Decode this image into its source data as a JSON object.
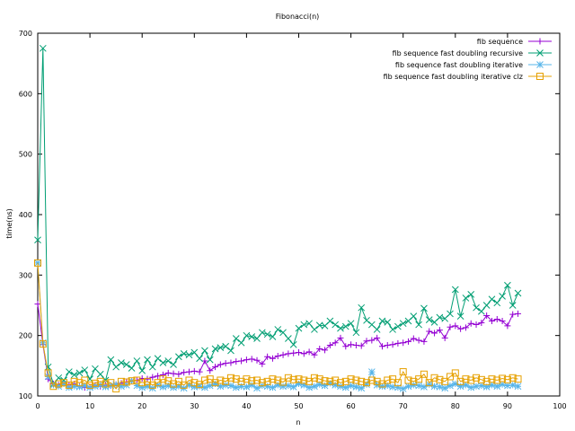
{
  "chart_data": {
    "type": "line",
    "title": "Fibonacci(n)",
    "xlabel": "n",
    "ylabel": "time(ns)",
    "xlim": [
      0,
      100
    ],
    "ylim": [
      100,
      700
    ],
    "xticks": [
      "0",
      "10",
      "20",
      "30",
      "40",
      "50",
      "60",
      "70",
      "80",
      "90",
      "100"
    ],
    "yticks": [
      "100",
      "200",
      "300",
      "400",
      "500",
      "600",
      "700"
    ],
    "legend_position": "top-right",
    "grid": false,
    "x": [
      0,
      1,
      2,
      3,
      4,
      5,
      6,
      7,
      8,
      9,
      10,
      11,
      12,
      13,
      14,
      15,
      16,
      17,
      18,
      19,
      20,
      21,
      22,
      23,
      24,
      25,
      26,
      27,
      28,
      29,
      30,
      31,
      32,
      33,
      34,
      35,
      36,
      37,
      38,
      39,
      40,
      41,
      42,
      43,
      44,
      45,
      46,
      47,
      48,
      49,
      50,
      51,
      52,
      53,
      54,
      55,
      56,
      57,
      58,
      59,
      60,
      61,
      62,
      63,
      64,
      65,
      66,
      67,
      68,
      69,
      70,
      71,
      72,
      73,
      74,
      75,
      76,
      77,
      78,
      79,
      80,
      81,
      82,
      83,
      84,
      85,
      86,
      87,
      88,
      89,
      90,
      91,
      92
    ],
    "series": [
      {
        "name": "fib sequence",
        "color": "#9400d3",
        "marker": "plus",
        "values": [
          252,
          185,
          128,
          120,
          118,
          122,
          118,
          120,
          116,
          114,
          115,
          118,
          116,
          118,
          117,
          119,
          121,
          123,
          125,
          126,
          129,
          128,
          131,
          133,
          135,
          138,
          137,
          136,
          139,
          140,
          141,
          140,
          158,
          142,
          148,
          152,
          154,
          155,
          157,
          158,
          160,
          161,
          159,
          153,
          165,
          162,
          166,
          168,
          170,
          171,
          172,
          170,
          173,
          168,
          178,
          176,
          184,
          188,
          196,
          182,
          185,
          184,
          183,
          191,
          192,
          196,
          182,
          184,
          185,
          187,
          188,
          190,
          195,
          192,
          190,
          207,
          204,
          209,
          196,
          214,
          216,
          211,
          213,
          220,
          218,
          221,
          233,
          224,
          227,
          224,
          216,
          235,
          236
        ]
      },
      {
        "name": "fib sequence fast doubling recursive",
        "color": "#009e73",
        "marker": "cross",
        "values": [
          358,
          675,
          148,
          120,
          130,
          126,
          140,
          135,
          138,
          143,
          128,
          145,
          136,
          126,
          160,
          148,
          155,
          152,
          146,
          158,
          142,
          160,
          148,
          162,
          155,
          158,
          152,
          165,
          170,
          168,
          172,
          162,
          175,
          160,
          178,
          180,
          182,
          175,
          195,
          188,
          200,
          198,
          195,
          205,
          202,
          198,
          210,
          205,
          195,
          185,
          212,
          218,
          220,
          210,
          217,
          216,
          224,
          218,
          212,
          215,
          220,
          205,
          246,
          225,
          218,
          210,
          224,
          222,
          210,
          215,
          220,
          224,
          232,
          218,
          245,
          226,
          222,
          230,
          228,
          236,
          276,
          232,
          262,
          268,
          246,
          240,
          250,
          260,
          254,
          265,
          283,
          250,
          270
        ]
      },
      {
        "name": "fib sequence fast doubling iterative",
        "color": "#56b4e9",
        "marker": "star",
        "values": [
          320,
          188,
          132,
          118,
          116,
          120,
          114,
          116,
          115,
          117,
          114,
          116,
          118,
          115,
          117,
          119,
          116,
          118,
          125,
          117,
          114,
          116,
          113,
          118,
          115,
          117,
          114,
          116,
          113,
          118,
          115,
          116,
          114,
          117,
          120,
          116,
          118,
          117,
          114,
          116,
          115,
          118,
          113,
          117,
          116,
          114,
          118,
          116,
          117,
          115,
          120,
          118,
          114,
          116,
          119,
          117,
          121,
          118,
          116,
          114,
          117,
          115,
          113,
          119,
          140,
          118,
          116,
          117,
          115,
          114,
          112,
          116,
          118,
          117,
          115,
          119,
          116,
          115,
          113,
          117,
          120,
          116,
          118,
          114,
          116,
          117,
          115,
          118,
          116,
          119,
          117,
          118,
          116
        ]
      },
      {
        "name": "fib sequence fast doubling iterative clz",
        "color": "#e6a000",
        "marker": "square",
        "values": [
          320,
          186,
          138,
          116,
          120,
          122,
          118,
          124,
          122,
          126,
          118,
          121,
          124,
          120,
          122,
          112,
          124,
          123,
          125,
          126,
          122,
          124,
          118,
          122,
          128,
          125,
          120,
          124,
          118,
          126,
          122,
          119,
          126,
          128,
          122,
          126,
          124,
          130,
          128,
          124,
          128,
          125,
          126,
          122,
          124,
          128,
          126,
          123,
          130,
          127,
          128,
          126,
          124,
          130,
          128,
          125,
          124,
          126,
          122,
          124,
          128,
          126,
          124,
          122,
          126,
          124,
          120,
          126,
          128,
          122,
          140,
          126,
          124,
          128,
          136,
          122,
          130,
          127,
          124,
          132,
          138,
          124,
          128,
          126,
          130,
          127,
          124,
          128,
          126,
          129,
          127,
          130,
          128
        ]
      }
    ]
  }
}
